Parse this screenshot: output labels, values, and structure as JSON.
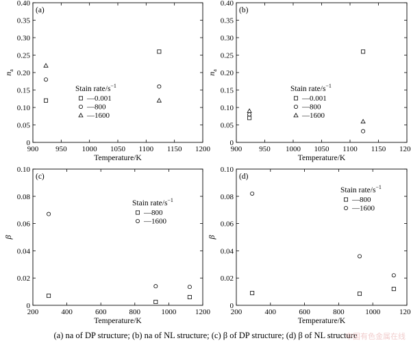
{
  "chart_data": [
    {
      "type": "scatter",
      "panel_label": "(a)",
      "xlabel": "Temperature/K",
      "ylabel_main": "n",
      "ylabel_sub": "a",
      "xlim": [
        900,
        1200
      ],
      "ylim": [
        0,
        0.4
      ],
      "xticks": [
        "900",
        "950",
        "1000",
        "1050",
        "1100",
        "1150",
        "1200"
      ],
      "yticks": [
        "0",
        "0.05",
        "0.10",
        "0.15",
        "0.20",
        "0.25",
        "0.30",
        "0.35",
        "0.40"
      ],
      "legend_title": "Stain rate/s",
      "legend_title_sup": "−1",
      "series": [
        {
          "name": "—0.001",
          "marker": "square",
          "points": [
            [
              923,
              0.12
            ],
            [
              1123,
              0.26
            ]
          ]
        },
        {
          "name": "—800",
          "marker": "circle",
          "points": [
            [
              923,
              0.18
            ],
            [
              1123,
              0.16
            ]
          ]
        },
        {
          "name": "—1600",
          "marker": "triangle",
          "points": [
            [
              923,
              0.22
            ],
            [
              1123,
              0.12
            ]
          ]
        }
      ]
    },
    {
      "type": "scatter",
      "panel_label": "(b)",
      "xlabel": "Temperature/K",
      "ylabel_main": "n",
      "ylabel_sub": "a",
      "xlim": [
        900,
        1200
      ],
      "ylim": [
        0,
        0.4
      ],
      "xticks": [
        "900",
        "950",
        "1000",
        "1050",
        "1100",
        "1150",
        "1200"
      ],
      "yticks": [
        "0",
        "0.05",
        "0.10",
        "0.15",
        "0.20",
        "0.25",
        "0.30",
        "0.35",
        "0.40"
      ],
      "legend_title": "Stain rate/s",
      "legend_title_sup": "−1",
      "series": [
        {
          "name": "—0.001",
          "marker": "square",
          "points": [
            [
              923,
              0.07
            ],
            [
              1123,
              0.26
            ]
          ]
        },
        {
          "name": "—800",
          "marker": "circle",
          "points": [
            [
              923,
              0.08
            ],
            [
              1123,
              0.032
            ]
          ]
        },
        {
          "name": "—1600",
          "marker": "triangle",
          "points": [
            [
              923,
              0.09
            ],
            [
              1123,
              0.06
            ]
          ]
        }
      ]
    },
    {
      "type": "scatter",
      "panel_label": "(c)",
      "xlabel": "Temperature/K",
      "ylabel_main": "β",
      "ylabel_sub": "",
      "xlim": [
        200,
        1200
      ],
      "ylim": [
        0,
        0.1
      ],
      "xticks": [
        "200",
        "400",
        "600",
        "800",
        "1000",
        "1200"
      ],
      "yticks": [
        "0",
        "0.02",
        "0.04",
        "0.06",
        "0.08",
        "0.10"
      ],
      "legend_title": "Stain rate/s",
      "legend_title_sup": "−1",
      "series": [
        {
          "name": "—800",
          "marker": "square",
          "points": [
            [
              293,
              0.007
            ],
            [
              923,
              0.0025
            ],
            [
              1123,
              0.006
            ]
          ]
        },
        {
          "name": "—1600",
          "marker": "circle",
          "points": [
            [
              293,
              0.067
            ],
            [
              923,
              0.014
            ],
            [
              1123,
              0.0135
            ]
          ]
        }
      ]
    },
    {
      "type": "scatter",
      "panel_label": "(d)",
      "xlabel": "Temperature/K",
      "ylabel_main": "β",
      "ylabel_sub": "",
      "xlim": [
        200,
        1200
      ],
      "ylim": [
        0,
        0.1
      ],
      "xticks": [
        "200",
        "400",
        "600",
        "800",
        "1000",
        "1200"
      ],
      "yticks": [
        "0",
        "0.02",
        "0.04",
        "0.06",
        "0.08",
        "0.10"
      ],
      "legend_title": "Stain rate/s",
      "legend_title_sup": "−1",
      "series": [
        {
          "name": "—800",
          "marker": "square",
          "points": [
            [
              293,
              0.009
            ],
            [
              923,
              0.0085
            ],
            [
              1123,
              0.012
            ]
          ]
        },
        {
          "name": "—1600",
          "marker": "circle",
          "points": [
            [
              293,
              0.082
            ],
            [
              923,
              0.036
            ],
            [
              1123,
              0.022
            ]
          ]
        }
      ]
    }
  ],
  "caption": "(a) na of DP structure; (b) na of  NL structure; (c) β of DP structure; (d) β of NL structure",
  "watermark": "中国有色金属在线"
}
